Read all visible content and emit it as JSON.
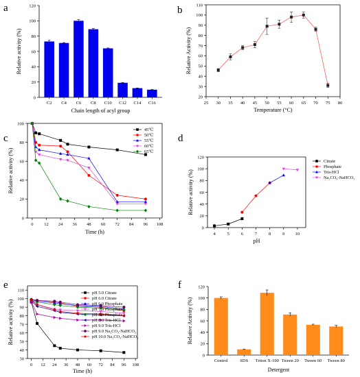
{
  "chart_data": [
    {
      "panel": "a",
      "type": "bar",
      "xlabel": "Chain length of acyl group",
      "ylabel": "Relative activity (%)",
      "ylim": [
        0,
        120
      ],
      "yticks": [
        0,
        20,
        40,
        60,
        80,
        100,
        120
      ],
      "categories": [
        "C2",
        "C4",
        "C6",
        "C8",
        "C10",
        "C12",
        "C14",
        "C16"
      ],
      "values": [
        73,
        71,
        100,
        89,
        64,
        19,
        12,
        10
      ],
      "errors": [
        1.5,
        0.5,
        1.5,
        1.0,
        0.5,
        0.5,
        0.3,
        0.3
      ],
      "color": "#0000ee"
    },
    {
      "panel": "b",
      "type": "line",
      "xlabel": "Temperature (°C)",
      "ylabel": "Relative Activity (%)",
      "xlim": [
        25,
        80
      ],
      "ylim": [
        20,
        110
      ],
      "xticks": [
        25,
        30,
        35,
        40,
        45,
        50,
        55,
        60,
        65,
        70,
        75,
        80
      ],
      "yticks": [
        20,
        30,
        40,
        50,
        60,
        70,
        80,
        90,
        100,
        110
      ],
      "x": [
        30,
        35,
        40,
        45,
        50,
        55,
        60,
        65,
        70,
        75
      ],
      "series": [
        {
          "values": [
            46,
            59,
            68,
            71,
            89,
            91,
            98,
            100,
            86,
            31
          ],
          "errors": [
            1.5,
            3,
            2,
            3,
            8,
            4,
            5,
            3,
            2,
            2
          ],
          "color": "#ff4d4d"
        }
      ]
    },
    {
      "panel": "c",
      "type": "line",
      "xlabel": "Time (h)",
      "ylabel": "Relative activity (%)",
      "xlim": [
        -4,
        110
      ],
      "ylim": [
        0,
        100
      ],
      "xticks": [
        0,
        12,
        24,
        36,
        48,
        60,
        72,
        84,
        96,
        108
      ],
      "yticks": [
        0,
        20,
        40,
        60,
        80,
        100
      ],
      "x": [
        0,
        3,
        6,
        24,
        30,
        48,
        72,
        96
      ],
      "legend_position": "top-right",
      "series": [
        {
          "name": "45℃",
          "values": [
            100,
            90,
            89,
            82,
            78,
            75,
            72,
            67
          ],
          "color": "#000000",
          "marker": "square"
        },
        {
          "name": "50℃",
          "values": [
            100,
            80,
            77,
            76,
            70,
            45,
            24,
            20
          ],
          "color": "#ff0000",
          "marker": "circle"
        },
        {
          "name": "55℃",
          "values": [
            100,
            75,
            72,
            68,
            67,
            63,
            17,
            17
          ],
          "color": "#0000ff",
          "marker": "triangle-up"
        },
        {
          "name": "60℃",
          "values": [
            100,
            70,
            67,
            62,
            61,
            53,
            15,
            15
          ],
          "color": "#e040e0",
          "marker": "triangle-down"
        },
        {
          "name": "65℃",
          "values": [
            100,
            61,
            58,
            20,
            18,
            12,
            8,
            8
          ],
          "color": "#008000",
          "marker": "diamond"
        }
      ]
    },
    {
      "panel": "d",
      "type": "line",
      "xlabel": "pH",
      "ylabel": "Relative activity (%)",
      "xlim": [
        3.5,
        10.6
      ],
      "ylim": [
        0,
        120
      ],
      "xticks": [
        4,
        5,
        6,
        7,
        8,
        9,
        10
      ],
      "yticks": [
        0,
        20,
        40,
        60,
        80,
        100,
        120
      ],
      "legend_position": "top-right",
      "series": [
        {
          "name": "Citrate",
          "x": [
            4,
            5,
            6
          ],
          "values": [
            3,
            6,
            15
          ],
          "color": "#000000",
          "marker": "square"
        },
        {
          "name": "Phosphate",
          "x": [
            6,
            7,
            8
          ],
          "values": [
            26,
            54,
            76
          ],
          "color": "#ff0000",
          "marker": "circle"
        },
        {
          "name": "Tris-HCl",
          "x": [
            8,
            9
          ],
          "values": [
            76,
            89
          ],
          "color": "#0000ff",
          "marker": "triangle-up"
        },
        {
          "name": "Na₂CO₃-NaHCO₃",
          "x": [
            9,
            10
          ],
          "values": [
            100,
            98
          ],
          "color": "#e040e0",
          "marker": "triangle-down"
        }
      ]
    },
    {
      "panel": "e",
      "type": "line",
      "xlabel": "Time (h)",
      "ylabel": "Relative activity (%)",
      "xlim": [
        -4,
        110
      ],
      "ylim": [
        30,
        115
      ],
      "xticks": [
        0,
        12,
        24,
        36,
        48,
        60,
        72,
        84,
        96,
        108
      ],
      "yticks": [
        30,
        40,
        50,
        60,
        70,
        80,
        90,
        100,
        110
      ],
      "x": [
        0,
        6,
        24,
        30,
        48,
        72,
        96
      ],
      "legend_position": "top-right",
      "series": [
        {
          "name": "pH 5.0 Citrate",
          "values": [
            96,
            71,
            45,
            42,
            40,
            39,
            37
          ],
          "color": "#000000",
          "marker": "square"
        },
        {
          "name": "pH 6.0 Citrate",
          "values": [
            99,
            98,
            96,
            95,
            91,
            90,
            86
          ],
          "color": "#ff0000",
          "marker": "circle"
        },
        {
          "name": "pH 6.0 Phosphate",
          "values": [
            99,
            97,
            95,
            94,
            92,
            91,
            88
          ],
          "color": "#0000ff",
          "marker": "triangle-up"
        },
        {
          "name": "pH 7.0 Phosphate",
          "values": [
            98,
            93,
            88,
            87,
            86,
            85,
            83
          ],
          "color": "#e040e0",
          "marker": "triangle-down"
        },
        {
          "name": "pH 8.0 Phosphate",
          "values": [
            98,
            96,
            93,
            92,
            90,
            89,
            87
          ],
          "color": "#008000",
          "marker": "diamond"
        },
        {
          "name": "pH 8.0 Tris-HCl",
          "values": [
            97,
            91,
            86,
            84,
            82,
            81,
            80
          ],
          "color": "#0000aa",
          "marker": "triangle-left"
        },
        {
          "name": "pH 9.0 Tris-HCl",
          "values": [
            96,
            82,
            78,
            77,
            75,
            75,
            74
          ],
          "color": "#aa00aa",
          "marker": "triangle-right"
        },
        {
          "name": "pH 9.0 Na₂CO₃-NaHCO₃",
          "values": [
            99,
            98,
            97,
            96,
            93,
            92,
            90
          ],
          "color": "#660066",
          "marker": "hexagon"
        },
        {
          "name": "pH 10.0 Na₂CO₃-NaHCO₃",
          "values": [
            99,
            93,
            87,
            85,
            83,
            82,
            80
          ],
          "color": "#cc0000",
          "marker": "star"
        }
      ]
    },
    {
      "panel": "f",
      "type": "bar",
      "xlabel": "Detergent",
      "ylabel": "Relative Activity (%)",
      "ylim": [
        0,
        120
      ],
      "yticks": [
        0,
        20,
        40,
        60,
        80,
        100,
        120
      ],
      "categories": [
        "Control",
        "SDS",
        "Triton X-100",
        "Tween 20",
        "Tween 60",
        "Tween 80"
      ],
      "values": [
        100,
        10,
        109,
        71,
        53,
        50
      ],
      "errors": [
        2,
        0.5,
        5,
        3,
        1,
        2
      ],
      "color": "#ff8c1a"
    }
  ]
}
